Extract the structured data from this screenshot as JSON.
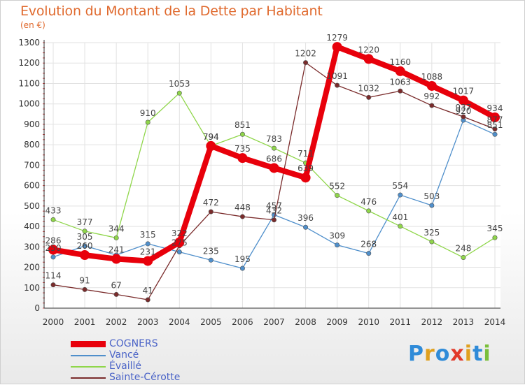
{
  "header": {
    "title": "Evolution du Montant de la Dette par Habitant",
    "unit": "(en €)"
  },
  "logo": {
    "text": "Proxiti",
    "letters": [
      "P",
      "r",
      "o",
      "x",
      "i",
      "t",
      "i"
    ],
    "colors": [
      "#2f8bd8",
      "#e0a01e",
      "#2f8bd8",
      "#e23a2a",
      "#e0a01e",
      "#2f8bd8",
      "#7abf3a"
    ]
  },
  "chart_data": {
    "type": "line",
    "title": "Evolution du Montant de la Dette par Habitant",
    "ylabel": "(en €)",
    "xlabel": "",
    "ylim": [
      0,
      1300
    ],
    "yticks": [
      0,
      100,
      200,
      300,
      400,
      500,
      600,
      700,
      800,
      900,
      1000,
      1100,
      1200,
      1300
    ],
    "x": [
      "2000",
      "2001",
      "2002",
      "2003",
      "2004",
      "2005",
      "2006",
      "2007",
      "2008",
      "2009",
      "2010",
      "2011",
      "2012",
      "2013",
      "2014"
    ],
    "grid": true,
    "legend_position": "bottom-left",
    "series": [
      {
        "name": "COGNERS",
        "color": "#e8000b",
        "emphasis": true,
        "values": [
          286,
          260,
          241,
          231,
          322,
          794,
          735,
          686,
          639,
          1279,
          1220,
          1160,
          1088,
          1017,
          934
        ],
        "labels": [
          "286",
          "260",
          "241",
          "231",
          "322",
          "794",
          "735",
          "686",
          "639",
          "1279",
          "1220",
          "1160",
          "1088",
          "1017",
          "934"
        ]
      },
      {
        "name": "Vancé",
        "color": "#4f8fcb",
        "emphasis": false,
        "values": [
          250,
          305,
          260,
          315,
          275,
          235,
          195,
          457,
          396,
          309,
          268,
          554,
          503,
          920,
          851
        ],
        "labels": [
          "250",
          "305",
          "",
          "315",
          "275",
          "235",
          "195",
          "457",
          "396",
          "309",
          "268",
          "554",
          "503",
          "920",
          "851"
        ]
      },
      {
        "name": "Évaillé",
        "color": "#8fd64a",
        "emphasis": false,
        "values": [
          433,
          377,
          344,
          910,
          1053,
          794,
          851,
          783,
          711,
          552,
          476,
          401,
          325,
          248,
          345
        ],
        "labels": [
          "433",
          "377",
          "344",
          "910",
          "1053",
          "794",
          "851",
          "783",
          "711",
          "552",
          "476",
          "401",
          "325",
          "248",
          "345"
        ]
      },
      {
        "name": "Sainte-Cérotte",
        "color": "#7a2b2b",
        "emphasis": false,
        "values": [
          114,
          91,
          67,
          41,
          305,
          472,
          448,
          432,
          1202,
          1091,
          1032,
          1063,
          992,
          937,
          877
        ],
        "labels": [
          "114",
          "91",
          "67",
          "41",
          "",
          "472",
          "448",
          "432",
          "1202",
          "1091",
          "1032",
          "1063",
          "992",
          "937",
          "877"
        ]
      }
    ]
  }
}
